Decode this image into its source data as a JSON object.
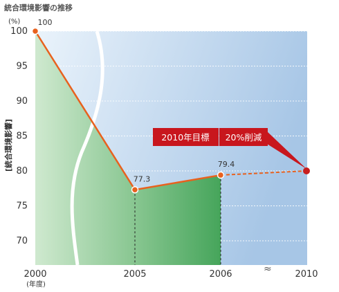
{
  "chart_data": {
    "type": "line",
    "title": "統合環境影響の推移",
    "ylabel": "[統合環境影響]",
    "yunit": "(%)",
    "xunit": "(年度)",
    "categories": [
      "2000",
      "2005",
      "2006",
      "2010"
    ],
    "values": [
      100,
      77.3,
      79.4,
      80
    ],
    "data_labels": [
      "100",
      "77.3",
      "79.4",
      ""
    ],
    "y_ticks": [
      70,
      75,
      80,
      85,
      90,
      95,
      100
    ],
    "ylim": [
      66,
      100
    ],
    "grid": true,
    "axis_break": "between 2006 and 2010",
    "target": {
      "year": "2010",
      "label": "2010年目標",
      "reduction": "20%削減",
      "value": 80
    },
    "colors": {
      "line": "#e8611e",
      "marker": "#c81e1e",
      "callout": "#c8161d",
      "area_green": "#4aa85c",
      "background_blue": "#a8c8e8"
    }
  }
}
